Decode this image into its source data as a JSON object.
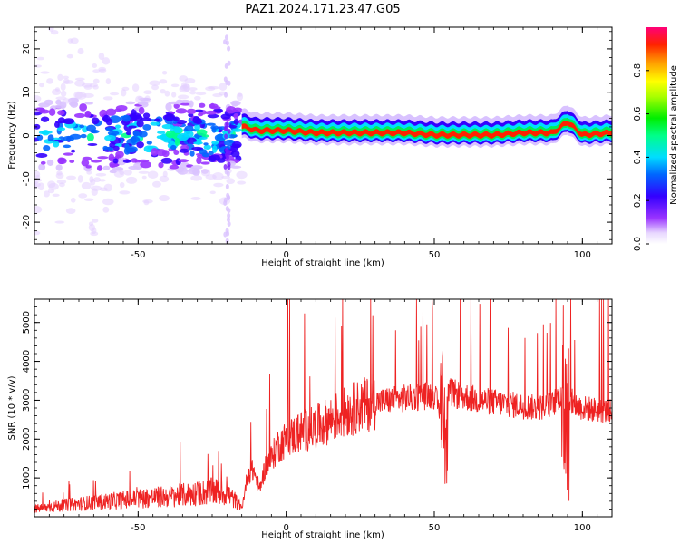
{
  "title": "PAZ1.2024.171.23.47.G05",
  "chart_data": [
    {
      "type": "heatmap",
      "xlabel": "Height of straight line (km)",
      "ylabel": "Frequency (Hz)",
      "xlim": [
        -85,
        110
      ],
      "ylim": [
        -25,
        25
      ],
      "xticks": [
        -50,
        0,
        50,
        100
      ],
      "yticks": [
        -20,
        -10,
        0,
        10,
        20
      ],
      "colorbar": {
        "label": "Normalized spectral amplitude",
        "range": [
          0.0,
          1.0
        ],
        "ticks": [
          0.0,
          0.2,
          0.4,
          0.6,
          0.8
        ],
        "tick_labels": [
          "0.0",
          "0.2",
          "0.4",
          "0.6",
          "0.8"
        ],
        "colormap": "rainbow (white-violet-blue-cyan-green-yellow-orange-red-magenta)"
      },
      "ridge": {
        "description": "strong narrow line near 0-1 Hz above about -15 km, scattered broadband energy between -85 and -15 km",
        "x": [
          -15,
          -10,
          0,
          10,
          20,
          40,
          50,
          60,
          70,
          80,
          90,
          95,
          100,
          110
        ],
        "y": [
          2,
          1,
          1,
          0.5,
          0.5,
          0.5,
          0,
          0,
          0,
          0.5,
          0.5,
          3,
          0,
          0.5
        ]
      },
      "grid": false
    },
    {
      "type": "line",
      "xlabel": "Height of straight line (km)",
      "ylabel": "SNR (10 * v/v)",
      "xlim": [
        -85,
        110
      ],
      "ylim": [
        0,
        5600
      ],
      "xticks": [
        -50,
        0,
        50,
        100
      ],
      "yticks": [
        1000,
        2000,
        3000,
        4000,
        5000
      ],
      "color": "#ee2222",
      "grid": false,
      "series": [
        {
          "x": [
            -85,
            -80,
            -75,
            -70,
            -65,
            -60,
            -55,
            -50,
            -45,
            -40,
            -35,
            -30,
            -25,
            -20,
            -17,
            -15,
            -13,
            -11,
            -9,
            -7,
            -5,
            -3,
            0,
            5,
            10,
            15,
            20,
            25,
            30,
            35,
            40,
            45,
            50,
            53,
            55,
            60,
            65,
            70,
            75,
            80,
            85,
            90,
            93,
            94,
            95,
            97,
            100,
            105,
            110
          ],
          "y": [
            200,
            250,
            300,
            330,
            370,
            400,
            430,
            470,
            500,
            520,
            560,
            600,
            650,
            600,
            400,
            200,
            1100,
            1200,
            700,
            1300,
            1500,
            1800,
            2000,
            2200,
            2300,
            2500,
            2700,
            2850,
            2950,
            3000,
            3050,
            3100,
            3150,
            2400,
            3200,
            3100,
            3000,
            2950,
            2900,
            2850,
            2800,
            2900,
            3200,
            600,
            3100,
            2900,
            2800,
            2750,
            2700
          ]
        }
      ]
    }
  ]
}
